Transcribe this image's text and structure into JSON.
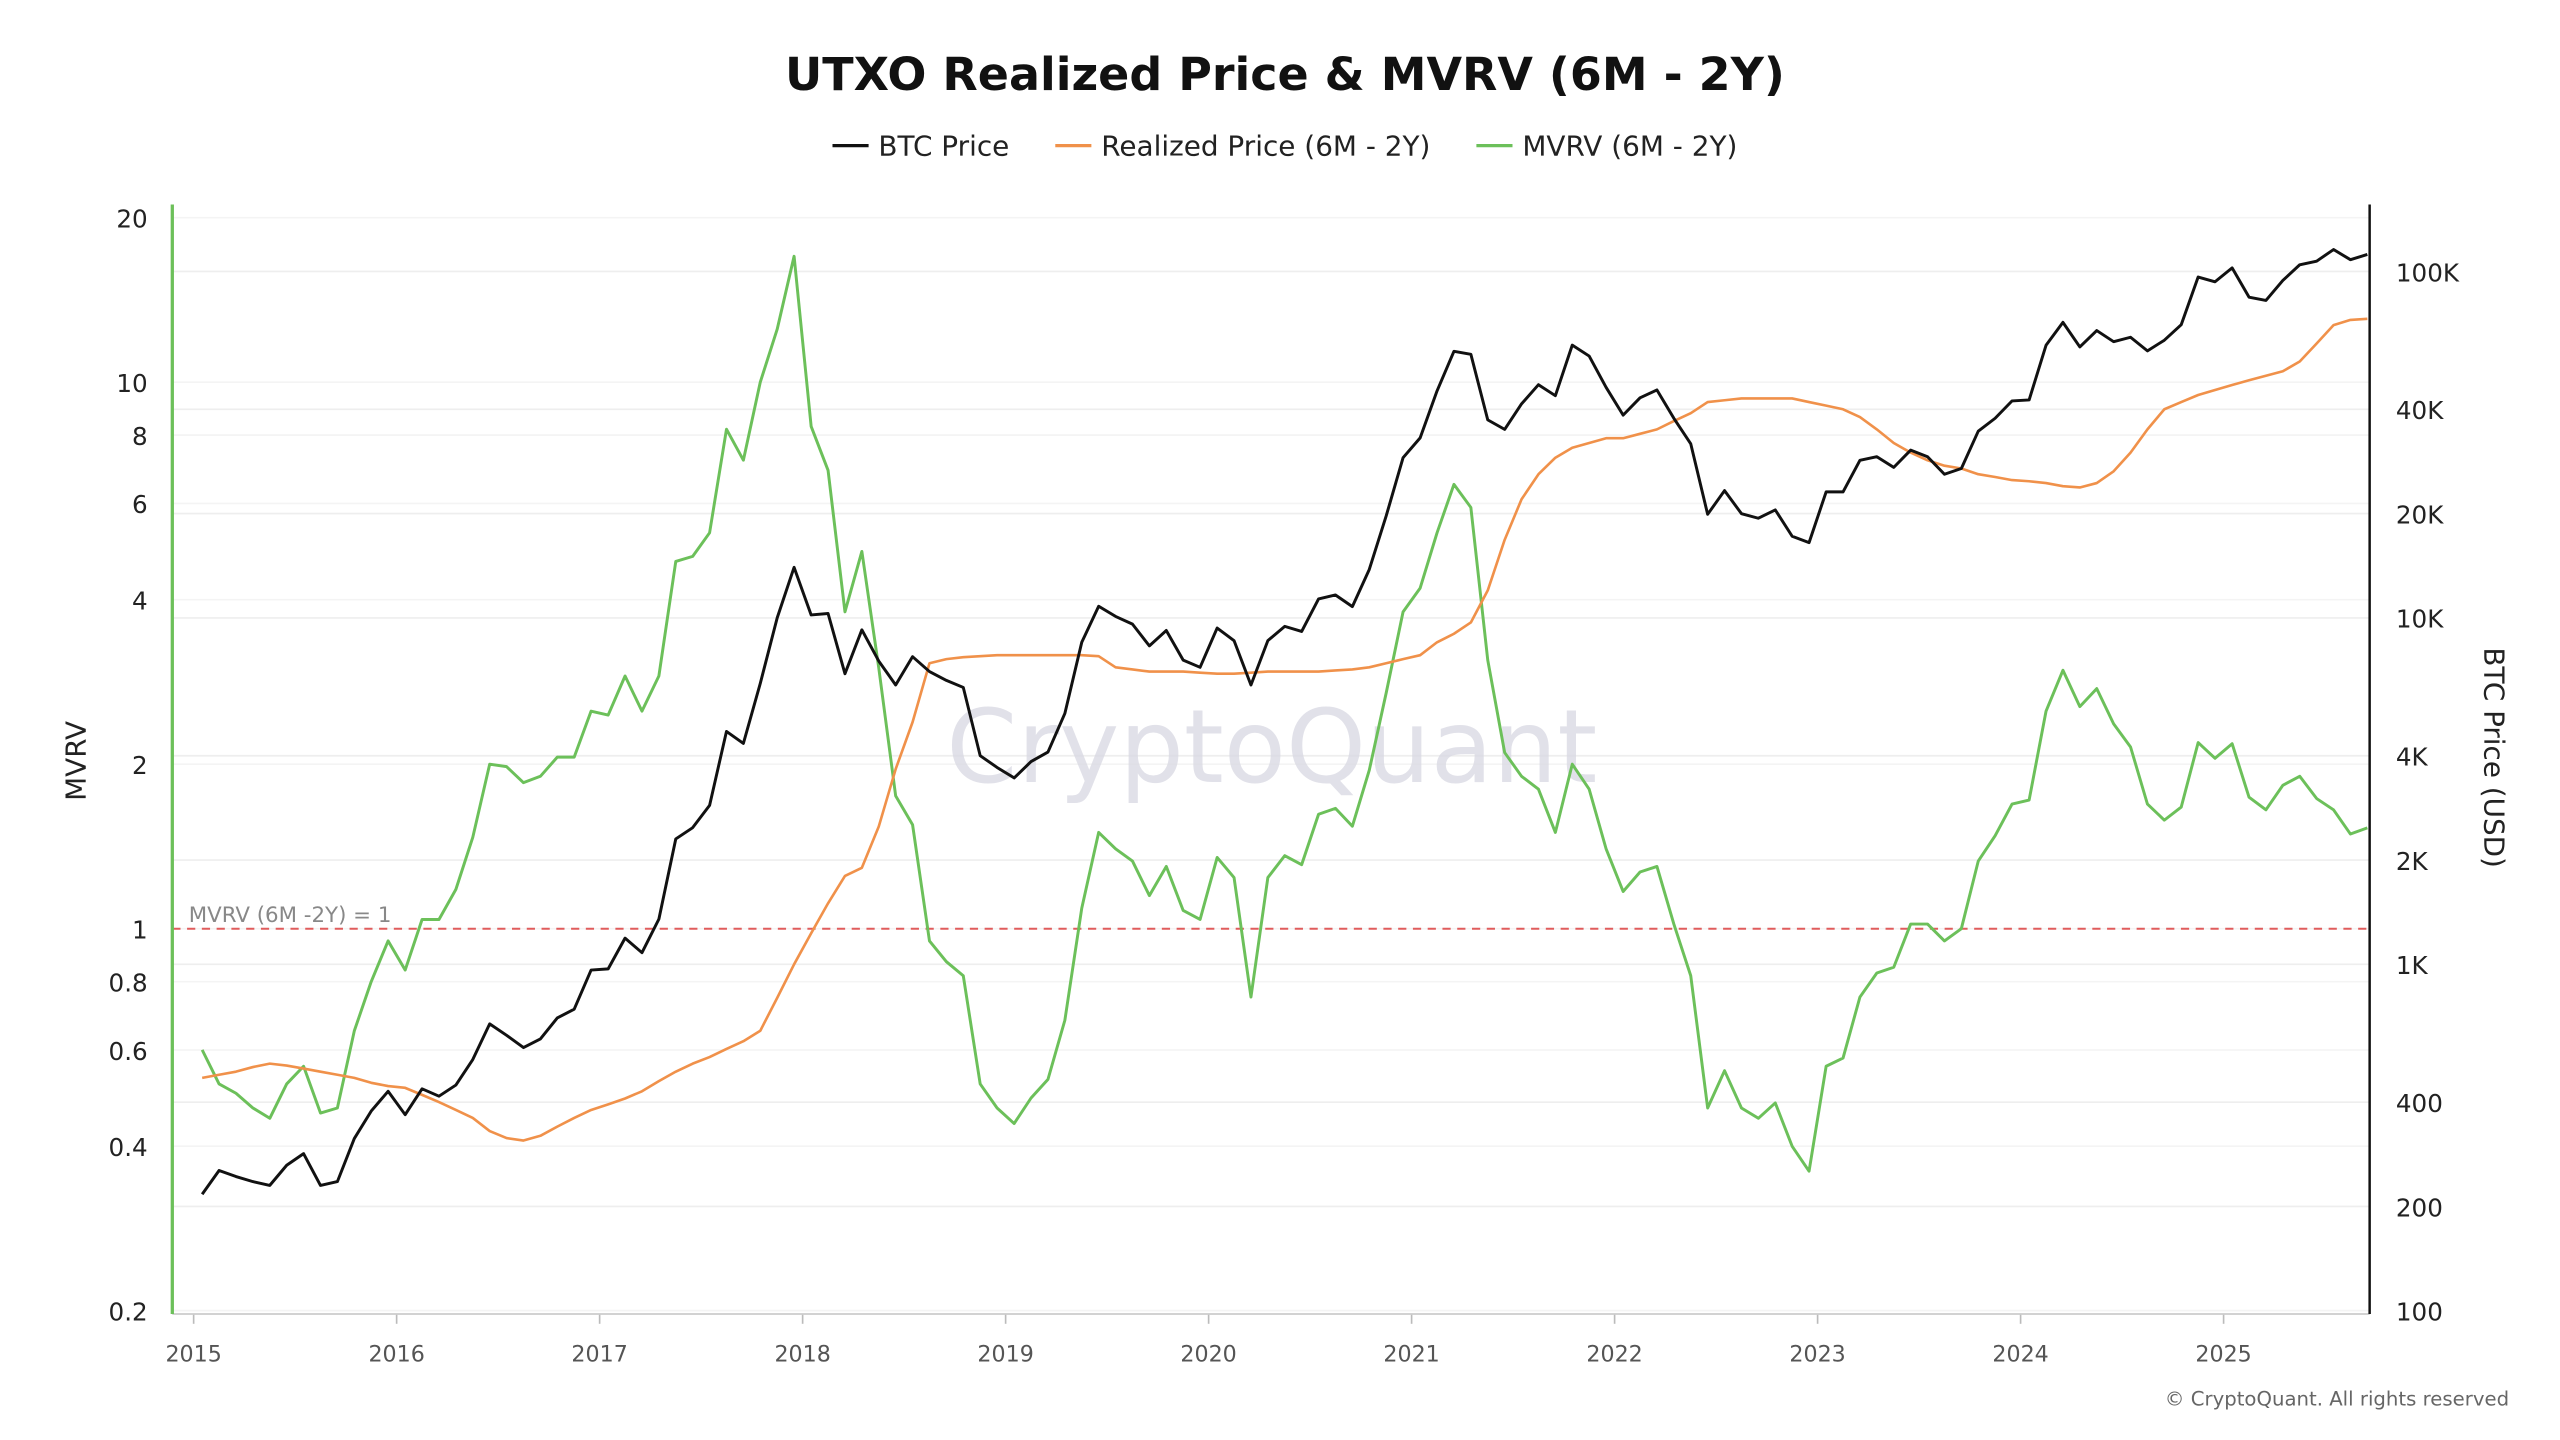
{
  "chart_data": {
    "type": "line",
    "title": "UTXO Realized Price & MVRV (6M - 2Y)",
    "legend_placement": "top-center",
    "grid": true,
    "y_left": {
      "label": "MVRV",
      "scale": "log",
      "range": [
        0.2,
        21
      ],
      "ticks": [
        {
          "v": 0.2,
          "l": "0.2"
        },
        {
          "v": 0.4,
          "l": "0.4"
        },
        {
          "v": 0.6,
          "l": "0.6"
        },
        {
          "v": 0.8,
          "l": "0.8"
        },
        {
          "v": 1,
          "l": "1"
        },
        {
          "v": 2,
          "l": "2"
        },
        {
          "v": 4,
          "l": "4"
        },
        {
          "v": 6,
          "l": "6"
        },
        {
          "v": 8,
          "l": "8"
        },
        {
          "v": 10,
          "l": "10"
        },
        {
          "v": 20,
          "l": "20"
        }
      ]
    },
    "y_right": {
      "label": "BTC Price (USD)",
      "scale": "log",
      "range": [
        100,
        155000
      ],
      "ticks": [
        {
          "v": 100,
          "l": "100"
        },
        {
          "v": 200,
          "l": "200"
        },
        {
          "v": 400,
          "l": "400"
        },
        {
          "v": 1000,
          "l": "1K"
        },
        {
          "v": 2000,
          "l": "2K"
        },
        {
          "v": 4000,
          "l": "4K"
        },
        {
          "v": 10000,
          "l": "10K"
        },
        {
          "v": 20000,
          "l": "20K"
        },
        {
          "v": 40000,
          "l": "40K"
        },
        {
          "v": 100000,
          "l": "100K"
        }
      ]
    },
    "x_ticks": [
      "2015",
      "2016",
      "2017",
      "2018",
      "2019",
      "2020",
      "2021",
      "2022",
      "2023",
      "2024",
      "2025"
    ],
    "reference_line": {
      "axis": "left",
      "value": 1,
      "label": "MVRV (6M -2Y) = 1",
      "color": "#e05c5c"
    },
    "start_month": "2015-01",
    "series": [
      {
        "name": "BTC Price",
        "axis": "right",
        "color": "#111111",
        "values": [
          217,
          254,
          244,
          236,
          230,
          263,
          284,
          230,
          236,
          314,
          377,
          430,
          368,
          437,
          416,
          448,
          531,
          673,
          624,
          575,
          609,
          700,
          742,
          963,
          970,
          1190,
          1080,
          1350,
          2300,
          2480,
          2875,
          4700,
          4340,
          6470,
          10000,
          14000,
          10200,
          10300,
          6900,
          9240,
          7500,
          6400,
          7730,
          7000,
          6600,
          6300,
          4000,
          3700,
          3450,
          3850,
          4100,
          5300,
          8500,
          10800,
          10100,
          9600,
          8300,
          9200,
          7550,
          7200,
          9350,
          8600,
          6400,
          8600,
          9450,
          9140,
          11350,
          11650,
          10780,
          13800,
          19700,
          29000,
          33100,
          45200,
          58800,
          57700,
          37300,
          35000,
          41500,
          47100,
          43800,
          61300,
          57000,
          46300,
          38500,
          43200,
          45500,
          37700,
          31800,
          19900,
          23300,
          20000,
          19400,
          20500,
          17200,
          16500,
          23100,
          23100,
          28500,
          29200,
          27200,
          30500,
          29200,
          26000,
          27000,
          34600,
          37700,
          42300,
          42600,
          61200,
          71300,
          60600,
          67500,
          62700,
          64600,
          59000,
          63300,
          70200,
          96400,
          93400,
          102400,
          84300,
          82500,
          94200,
          104600,
          107100,
          115700,
          108200,
          112000
        ]
      },
      {
        "name": "Realized Price (6M - 2Y)",
        "axis": "right",
        "color": "#f0914a",
        "values": [
          470,
          480,
          490,
          505,
          517,
          510,
          500,
          490,
          480,
          470,
          455,
          445,
          440,
          420,
          400,
          380,
          360,
          330,
          315,
          310,
          320,
          340,
          360,
          380,
          394,
          410,
          430,
          460,
          490,
          517,
          540,
          570,
          600,
          643,
          800,
          1000,
          1230,
          1500,
          1800,
          1900,
          2500,
          3660,
          5000,
          7400,
          7600,
          7700,
          7750,
          7800,
          7800,
          7800,
          7800,
          7800,
          7800,
          7750,
          7200,
          7100,
          7000,
          7000,
          7000,
          6950,
          6900,
          6900,
          6950,
          7000,
          7000,
          7000,
          7000,
          7050,
          7100,
          7200,
          7400,
          7600,
          7800,
          8500,
          9000,
          9700,
          12000,
          16800,
          22000,
          26000,
          29000,
          31000,
          32000,
          33000,
          33000,
          34000,
          35000,
          37000,
          39000,
          42000,
          42500,
          43000,
          43000,
          43000,
          43000,
          42000,
          41000,
          40000,
          38000,
          35000,
          32000,
          30000,
          28500,
          27500,
          27000,
          26000,
          25500,
          25000,
          24800,
          24500,
          24000,
          23800,
          24500,
          26500,
          30000,
          35000,
          40000,
          42000,
          44000,
          45500,
          47000,
          48500,
          50000,
          51500,
          55000,
          62000,
          70000,
          72500,
          73000
        ]
      },
      {
        "name": "MVRV (6M - 2Y)",
        "axis": "left",
        "color": "#6cc05a",
        "values": [
          0.6,
          0.52,
          0.5,
          0.47,
          0.45,
          0.52,
          0.56,
          0.46,
          0.47,
          0.65,
          0.8,
          0.95,
          0.84,
          1.04,
          1.04,
          1.18,
          1.47,
          2.0,
          1.98,
          1.85,
          1.9,
          2.06,
          2.06,
          2.5,
          2.46,
          2.9,
          2.5,
          2.9,
          4.7,
          4.8,
          5.3,
          8.2,
          7.2,
          10,
          12.5,
          17,
          8.3,
          6.9,
          3.8,
          4.9,
          3.0,
          1.75,
          1.55,
          0.95,
          0.87,
          0.82,
          0.52,
          0.47,
          0.44,
          0.49,
          0.53,
          0.68,
          1.09,
          1.5,
          1.4,
          1.33,
          1.15,
          1.3,
          1.08,
          1.04,
          1.35,
          1.24,
          0.75,
          1.24,
          1.36,
          1.31,
          1.62,
          1.66,
          1.54,
          1.95,
          2.7,
          3.8,
          4.2,
          5.3,
          6.5,
          5.9,
          3.1,
          2.1,
          1.9,
          1.8,
          1.5,
          2.0,
          1.8,
          1.4,
          1.17,
          1.27,
          1.3,
          1.02,
          0.82,
          0.47,
          0.55,
          0.47,
          0.45,
          0.48,
          0.4,
          0.36,
          0.56,
          0.58,
          0.75,
          0.83,
          0.85,
          1.02,
          1.02,
          0.95,
          1.0,
          1.33,
          1.48,
          1.69,
          1.72,
          2.5,
          2.97,
          2.55,
          2.75,
          2.37,
          2.15,
          1.69,
          1.58,
          1.67,
          2.19,
          2.05,
          2.18,
          1.74,
          1.65,
          1.83,
          1.9,
          1.73,
          1.65,
          1.49,
          1.53
        ]
      }
    ]
  },
  "watermark": "CryptoQuant",
  "copyright": "© CryptoQuant. All rights reserved"
}
